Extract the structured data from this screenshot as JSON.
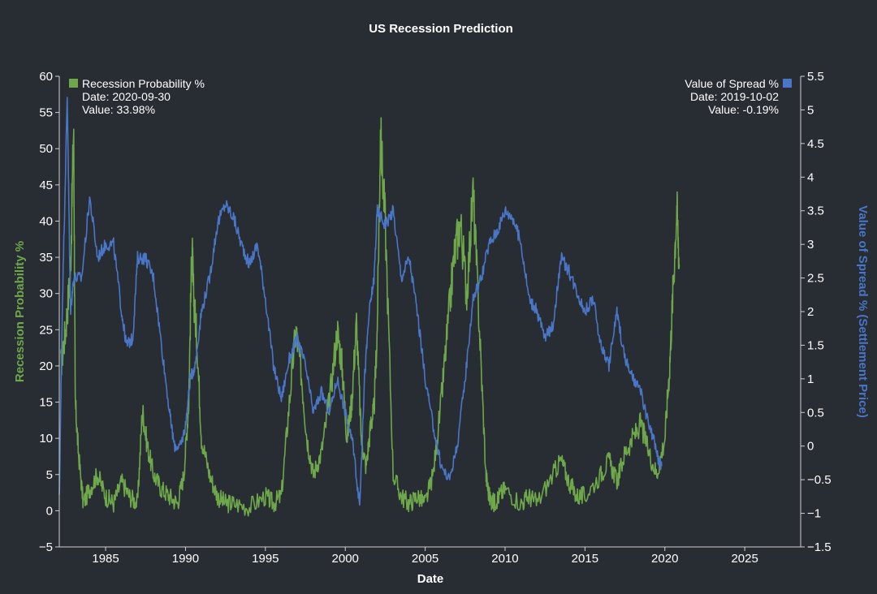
{
  "chart_data": {
    "type": "line",
    "title": "US Recession Prediction",
    "xlabel": "Date",
    "ylabel_left": "Recession Probability %",
    "ylabel_right": "Value of Spread % (Settlement Price)",
    "x_range": [
      1982.1,
      2028.5
    ],
    "x_ticks": [
      "1985",
      "1990",
      "1995",
      "2000",
      "2005",
      "2010",
      "2015",
      "2020",
      "2025"
    ],
    "ylim_left": [
      -5,
      60
    ],
    "yticks_left": [
      "−5",
      "0",
      "5",
      "10",
      "15",
      "20",
      "25",
      "30",
      "35",
      "40",
      "45",
      "50",
      "55",
      "60"
    ],
    "ylim_right": [
      -1.5,
      5.5
    ],
    "yticks_right": [
      "−1.5",
      "−1",
      "−0.5",
      "0",
      "0.5",
      "1",
      "1.5",
      "2",
      "2.5",
      "3",
      "3.5",
      "4",
      "4.5",
      "5",
      "5.5"
    ],
    "colors": {
      "probability": "#6ea84a",
      "spread": "#4a76c8",
      "background": "#282c33",
      "text": "#ffffff",
      "axis": "#d0d0d0"
    },
    "legend": {
      "left": {
        "name": "Recession Probability %",
        "date_label": "Date: 2020-09-30",
        "value_label": "Value: 33.98%"
      },
      "right": {
        "name": "Value of Spread %",
        "date_label": "Date: 2019-10-02",
        "value_label": "Value: -0.19%"
      }
    },
    "series": [
      {
        "name": "Recession Probability %",
        "axis": "left",
        "x": [
          1982.2,
          1982.5,
          1982.8,
          1983.0,
          1983.1,
          1983.3,
          1983.6,
          1984.0,
          1984.5,
          1985.0,
          1985.5,
          1986.0,
          1986.5,
          1987.0,
          1987.3,
          1987.6,
          1988.0,
          1988.5,
          1989.0,
          1989.5,
          1989.9,
          1990.2,
          1990.4,
          1990.5,
          1990.7,
          1991.0,
          1991.5,
          1992.0,
          1992.5,
          1993.0,
          1994.0,
          1995.0,
          1995.5,
          1996.0,
          1996.5,
          1996.9,
          1997.2,
          1997.6,
          1998.0,
          1998.5,
          1999.0,
          1999.5,
          1999.8,
          2000.1,
          2000.4,
          2000.7,
          2001.0,
          2001.3,
          2001.6,
          2001.8,
          2002.0,
          2002.2,
          2002.5,
          2003.0,
          2003.5,
          2004.0,
          2004.5,
          2005.0,
          2005.5,
          2006.0,
          2006.4,
          2006.8,
          2007.2,
          2007.6,
          2008.0,
          2008.4,
          2008.8,
          2009.0,
          2009.3,
          2009.6,
          2010.0,
          2011.0,
          2011.5,
          2012.0,
          2013.0,
          2013.5,
          2014.0,
          2014.5,
          2015.0,
          2016.0,
          2016.5,
          2017.0,
          2017.5,
          2018.0,
          2018.5,
          2019.0,
          2019.5,
          2020.0,
          2020.3,
          2020.5,
          2020.75,
          2020.9
        ],
        "values": [
          20,
          25,
          33,
          53,
          15,
          8,
          1,
          3,
          5,
          2,
          1,
          4,
          2,
          1,
          14,
          9,
          5,
          3,
          2,
          1,
          5,
          15,
          37,
          30,
          24,
          10,
          5,
          2,
          1,
          1,
          0.5,
          2,
          1,
          2,
          15,
          25,
          20,
          10,
          5,
          8,
          15,
          25,
          20,
          10,
          15,
          26,
          10,
          6,
          12,
          14,
          25,
          52,
          40,
          5,
          2,
          1,
          2,
          1,
          5,
          15,
          25,
          35,
          40,
          30,
          44,
          25,
          5,
          2,
          1,
          2,
          3,
          1,
          2,
          1,
          5,
          7,
          4,
          2,
          2,
          5,
          7,
          4,
          8,
          10,
          12,
          8,
          5,
          10,
          20,
          30,
          42,
          34
        ]
      },
      {
        "name": "Value of Spread %",
        "axis": "right",
        "x": [
          1982.1,
          1982.3,
          1982.6,
          1982.8,
          1983.0,
          1983.5,
          1984.0,
          1984.5,
          1985.0,
          1985.5,
          1986.0,
          1986.3,
          1986.7,
          1987.0,
          1987.5,
          1988.0,
          1988.5,
          1989.0,
          1989.3,
          1989.7,
          1990.0,
          1990.3,
          1990.6,
          1991.0,
          1991.5,
          1992.0,
          1992.5,
          1993.0,
          1993.5,
          1994.0,
          1994.5,
          1995.0,
          1995.5,
          1996.0,
          1996.5,
          1997.0,
          1997.5,
          1998.0,
          1998.5,
          1999.0,
          1999.5,
          2000.0,
          2000.5,
          2000.9,
          2001.2,
          2001.5,
          2001.8,
          2002.0,
          2002.5,
          2003.0,
          2003.5,
          2004.0,
          2004.5,
          2005.0,
          2005.5,
          2006.0,
          2006.5,
          2007.0,
          2007.5,
          2008.0,
          2008.5,
          2009.0,
          2009.5,
          2010.0,
          2010.5,
          2011.0,
          2011.5,
          2012.0,
          2012.5,
          2013.0,
          2013.5,
          2014.0,
          2014.5,
          2015.0,
          2015.5,
          2016.0,
          2016.5,
          2017.0,
          2017.5,
          2018.0,
          2018.5,
          2019.0,
          2019.3,
          2019.6,
          2019.8
        ],
        "values": [
          -0.8,
          2.2,
          5.2,
          2.0,
          2.5,
          2.5,
          3.7,
          2.8,
          3.0,
          3.0,
          2.0,
          1.5,
          1.6,
          2.8,
          2.8,
          2.5,
          1.5,
          0.5,
          0,
          0,
          0.3,
          1.0,
          1.2,
          2.0,
          2.5,
          3.3,
          3.6,
          3.4,
          3.0,
          2.7,
          3.0,
          2.2,
          1.2,
          0.7,
          1.3,
          1.6,
          1.2,
          0.5,
          0.8,
          0.5,
          1.0,
          0.5,
          0,
          -0.9,
          1.0,
          2.0,
          2.5,
          3.5,
          3.3,
          3.5,
          2.5,
          2.8,
          2.0,
          1.0,
          0.3,
          -0.3,
          -0.5,
          0,
          1.0,
          2.2,
          2.5,
          3.0,
          3.2,
          3.5,
          3.4,
          3.0,
          2.2,
          2.0,
          1.6,
          1.8,
          2.8,
          2.6,
          2.3,
          2.0,
          2.2,
          1.5,
          1.2,
          2.0,
          1.3,
          1.0,
          0.8,
          0.3,
          0.1,
          -0.2,
          -0.3
        ]
      }
    ]
  }
}
